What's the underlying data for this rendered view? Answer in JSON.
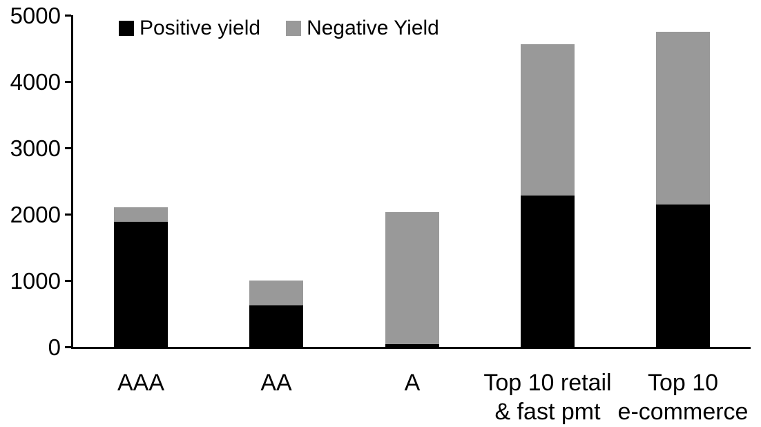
{
  "chart_data": {
    "type": "bar",
    "stacked": true,
    "title": "",
    "xlabel": "",
    "ylabel": "",
    "categories": [
      "AAA",
      "AA",
      "A",
      "Top 10 retail\n& fast pmt",
      "Top 10\ne-commerce"
    ],
    "series": [
      {
        "name": "Positive yield",
        "color": "#000000",
        "values": [
          1890,
          620,
          40,
          2280,
          2150
        ]
      },
      {
        "name": "Negative Yield",
        "color": "#999999",
        "values": [
          220,
          380,
          1985,
          2280,
          2600
        ]
      }
    ],
    "ylim": [
      0,
      5000
    ],
    "yticks": [
      0,
      1000,
      2000,
      3000,
      4000,
      5000
    ],
    "grid": false,
    "legend_position": "top",
    "axis_color": "#000000",
    "background_color": "#ffffff"
  }
}
